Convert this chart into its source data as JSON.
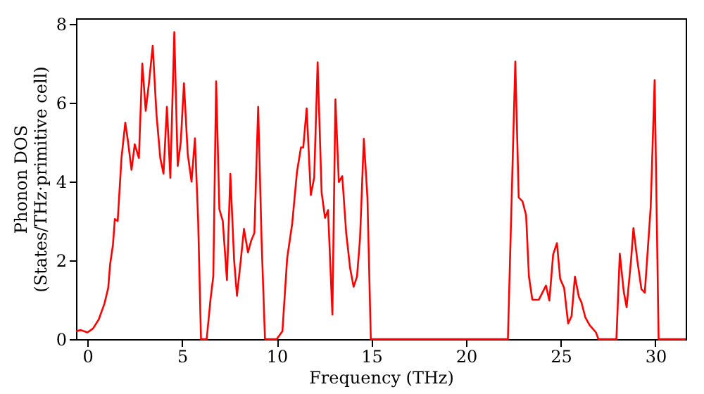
{
  "chart_data": {
    "type": "line",
    "xlabel": "Frequency (THz)",
    "ylabel": "Phonon DOS\n(States/THz·primitive cell)",
    "xlim": [
      -0.6,
      31.6
    ],
    "ylim": [
      0,
      8.15
    ],
    "xticks": [
      0,
      5,
      10,
      15,
      20,
      25,
      30
    ],
    "yticks": [
      0,
      2,
      4,
      6,
      8
    ],
    "grid": false,
    "marker": "none",
    "line_style": "solid",
    "series": [
      {
        "color": "#ff0000",
        "x": [
          -0.6,
          -0.35,
          0.0,
          0.3,
          0.6,
          0.9,
          1.1,
          1.2,
          1.35,
          1.45,
          1.6,
          1.8,
          2.0,
          2.15,
          2.33,
          2.5,
          2.72,
          2.9,
          3.08,
          3.25,
          3.45,
          3.65,
          3.85,
          4.02,
          4.2,
          4.38,
          4.59,
          4.77,
          4.93,
          5.1,
          5.3,
          5.5,
          5.68,
          5.85,
          6.0,
          6.3,
          6.5,
          6.65,
          6.8,
          6.97,
          7.15,
          7.37,
          7.55,
          7.75,
          7.9,
          8.1,
          8.27,
          8.48,
          8.65,
          8.82,
          9.02,
          9.2,
          9.38,
          10.0,
          10.3,
          10.55,
          10.82,
          11.07,
          11.28,
          11.4,
          11.58,
          11.8,
          11.98,
          12.16,
          12.37,
          12.55,
          12.71,
          12.94,
          13.1,
          13.28,
          13.46,
          13.67,
          13.88,
          14.06,
          14.24,
          14.4,
          14.6,
          14.79,
          14.97,
          22.21,
          22.6,
          22.78,
          22.98,
          23.17,
          23.32,
          23.5,
          23.84,
          24.22,
          24.4,
          24.6,
          24.8,
          24.97,
          25.18,
          25.39,
          25.57,
          25.75,
          25.96,
          26.09,
          26.3,
          26.52,
          26.86,
          26.99,
          27.94,
          28.12,
          28.33,
          28.48,
          28.72,
          28.84,
          29.05,
          29.26,
          29.44,
          29.75,
          29.96,
          30.17,
          31.6
        ],
        "values": [
          0.2,
          0.23,
          0.17,
          0.27,
          0.5,
          0.9,
          1.3,
          1.9,
          2.4,
          3.05,
          3.0,
          4.6,
          5.5,
          5.0,
          4.3,
          4.95,
          4.6,
          7.0,
          5.8,
          6.5,
          7.45,
          5.7,
          4.6,
          4.2,
          5.9,
          4.1,
          7.8,
          4.4,
          5.0,
          6.5,
          4.7,
          4.0,
          5.1,
          3.0,
          0.0,
          0.0,
          1.0,
          1.6,
          6.55,
          3.3,
          3.0,
          1.5,
          4.2,
          2.0,
          1.1,
          2.0,
          2.8,
          2.2,
          2.5,
          2.7,
          5.9,
          2.5,
          0.0,
          0.0,
          0.2,
          2.05,
          2.95,
          4.25,
          4.87,
          4.87,
          5.86,
          3.66,
          4.11,
          7.03,
          3.73,
          3.08,
          3.28,
          0.62,
          6.09,
          3.99,
          4.14,
          2.69,
          1.79,
          1.33,
          1.59,
          2.56,
          5.09,
          3.6,
          0.0,
          0.0,
          7.05,
          3.6,
          3.5,
          3.15,
          1.59,
          1.0,
          1.0,
          1.36,
          0.98,
          2.15,
          2.44,
          1.53,
          1.3,
          0.4,
          0.58,
          1.59,
          1.07,
          0.94,
          0.55,
          0.36,
          0.17,
          0.0,
          0.0,
          2.17,
          1.2,
          0.81,
          2.04,
          2.82,
          1.98,
          1.27,
          1.18,
          3.34,
          6.58,
          0.0,
          0.0
        ]
      }
    ]
  }
}
